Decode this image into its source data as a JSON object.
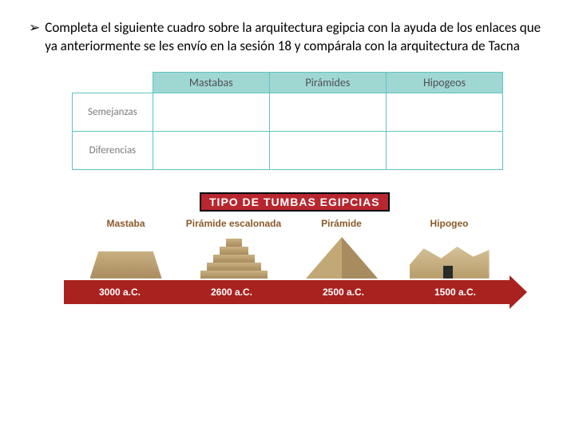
{
  "instruction": {
    "bullet": "➢",
    "text": "Completa el siguiente cuadro sobre la arquitectura egipcia con la ayuda de los enlaces que ya anteriormente se les envío en la sesión 18 y compárala con la arquitectura de Tacna"
  },
  "table": {
    "headers": [
      "Mastabas",
      "Pirámides",
      "Hipogeos"
    ],
    "rows": [
      "Semejanzas",
      "Diferencias"
    ]
  },
  "tombs": {
    "title": "TIPO DE TUMBAS EGIPCIAS",
    "items": [
      {
        "label": "Mastaba",
        "date": "3000 a.C."
      },
      {
        "label": "Pirámide escalonada",
        "date": "2600 a.C."
      },
      {
        "label": "Pirámide",
        "date": "2500 a.C."
      },
      {
        "label": "Hipogeo",
        "date": "1500 a.C."
      }
    ],
    "colors": {
      "title_bg": "#b8272f",
      "timeline_bg": "#a8221f",
      "label_color": "#8a5a2a",
      "stone_light": "#c9b181",
      "stone_dark": "#a88b5e"
    }
  }
}
